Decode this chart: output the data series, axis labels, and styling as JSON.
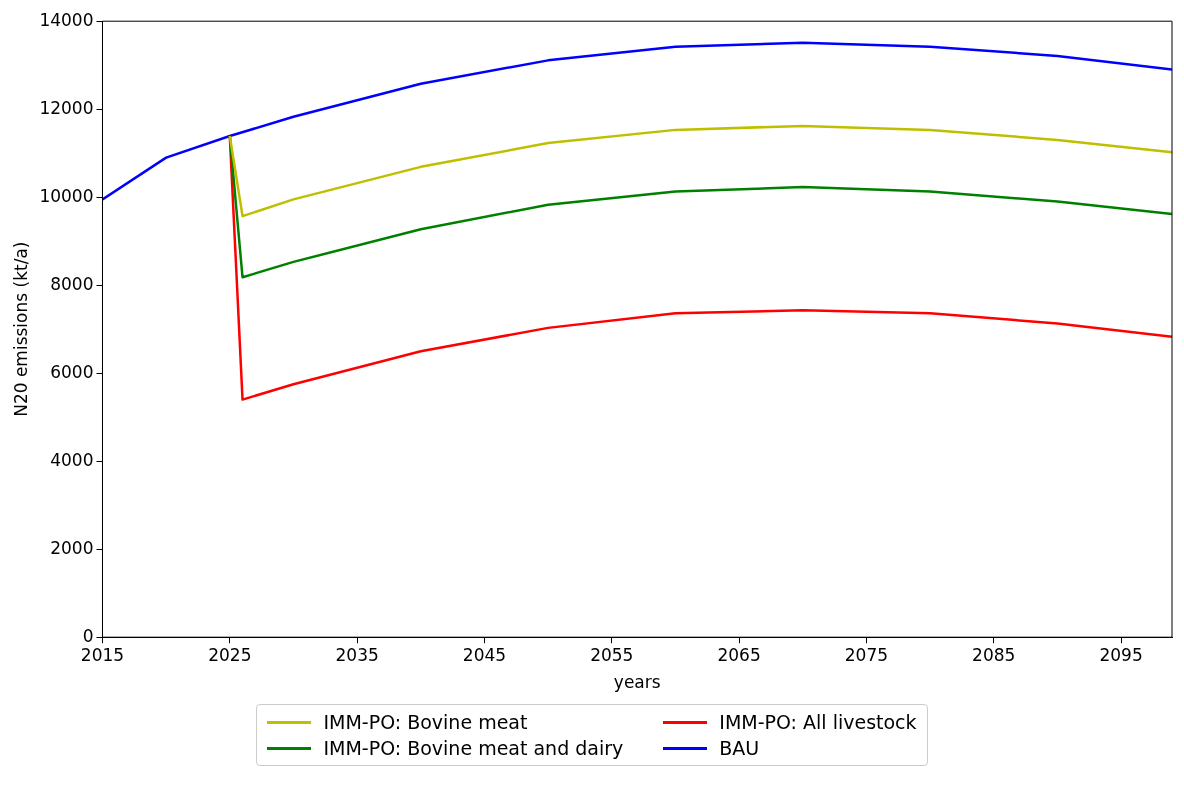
{
  "chart_data": {
    "type": "line",
    "xlabel": "years",
    "ylabel": "N20 emissions (kt/a)",
    "xlim": [
      2015,
      2099
    ],
    "xticks": [
      2015,
      2025,
      2035,
      2045,
      2055,
      2065,
      2075,
      2085,
      2095
    ],
    "ylim": [
      0,
      14000
    ],
    "yticks": [
      0,
      2000,
      4000,
      6000,
      8000,
      10000,
      12000,
      14000
    ],
    "grid": false,
    "legend": "bottom",
    "marker": "none",
    "line_style": "solid",
    "series": [
      {
        "name": "IMM-PO: Bovine meat",
        "color": "#bfbf00",
        "x": [
          2025,
          2026,
          2030,
          2040,
          2050,
          2060,
          2070,
          2080,
          2090,
          2099
        ],
        "values": [
          11390,
          9570,
          9950,
          10690,
          11230,
          11530,
          11620,
          11530,
          11300,
          11020
        ]
      },
      {
        "name": "IMM-PO: Bovine meat and dairy",
        "color": "#008000",
        "x": [
          2025,
          2026,
          2030,
          2040,
          2050,
          2060,
          2070,
          2080,
          2090,
          2099
        ],
        "values": [
          11390,
          8180,
          8530,
          9270,
          9830,
          10130,
          10230,
          10130,
          9900,
          9620
        ]
      },
      {
        "name": "IMM-PO: All livestock",
        "color": "#ff0000",
        "x": [
          2025,
          2026,
          2030,
          2040,
          2050,
          2060,
          2070,
          2080,
          2090,
          2099
        ],
        "values": [
          11390,
          5400,
          5750,
          6500,
          7030,
          7360,
          7430,
          7360,
          7130,
          6830
        ]
      },
      {
        "name": "BAU",
        "color": "#0000ff",
        "x": [
          2015,
          2020,
          2025,
          2030,
          2040,
          2050,
          2060,
          2070,
          2080,
          2090,
          2099
        ],
        "values": [
          9950,
          10900,
          11390,
          11830,
          12580,
          13110,
          13420,
          13510,
          13420,
          13210,
          12900
        ]
      }
    ]
  }
}
